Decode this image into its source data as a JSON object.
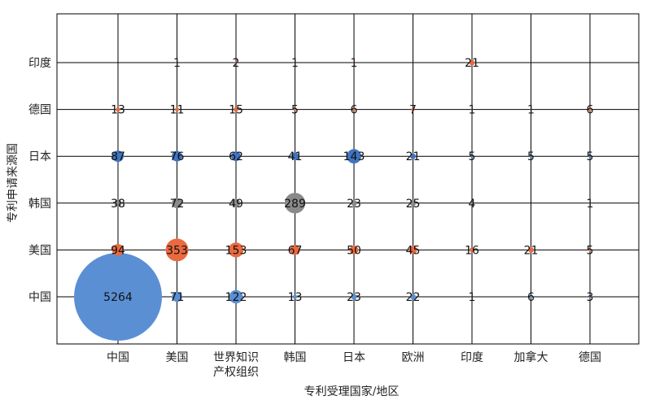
{
  "chart_data": {
    "type": "scatter",
    "subtype": "bubble",
    "title": "",
    "xlabel": "专利受理国家/地区",
    "ylabel": "专利申请来源国",
    "x_categories": [
      [
        "中国"
      ],
      [
        "美国"
      ],
      [
        "世界知识",
        "产权组织"
      ],
      [
        "韩国"
      ],
      [
        "日本"
      ],
      [
        "欧洲"
      ],
      [
        "印度"
      ],
      [
        "加拿大"
      ],
      [
        "德国"
      ]
    ],
    "y_categories": [
      "中国",
      "美国",
      "韩国",
      "日本",
      "德国",
      "印度"
    ],
    "grid": true,
    "colors": {
      "中国": "#5b8fd4",
      "美国": "#ea6a3f",
      "韩国": "#8a8a8a",
      "日本": "#3f74c0",
      "德国": "#ea6a3f",
      "印度": "#ea6a3f"
    },
    "series": [
      {
        "name": "中国",
        "values": [
          5264,
          71,
          122,
          13,
          23,
          22,
          1,
          6,
          3
        ]
      },
      {
        "name": "美国",
        "values": [
          94,
          353,
          153,
          67,
          50,
          45,
          16,
          21,
          5
        ]
      },
      {
        "name": "韩国",
        "values": [
          38,
          72,
          49,
          289,
          23,
          25,
          4,
          null,
          1
        ]
      },
      {
        "name": "日本",
        "values": [
          87,
          76,
          62,
          41,
          143,
          21,
          5,
          5,
          5
        ]
      },
      {
        "name": "德国",
        "values": [
          13,
          11,
          15,
          5,
          6,
          7,
          1,
          1,
          6
        ]
      },
      {
        "name": "印度",
        "values": [
          null,
          1,
          2,
          1,
          1,
          null,
          21,
          null,
          null
        ]
      }
    ]
  }
}
